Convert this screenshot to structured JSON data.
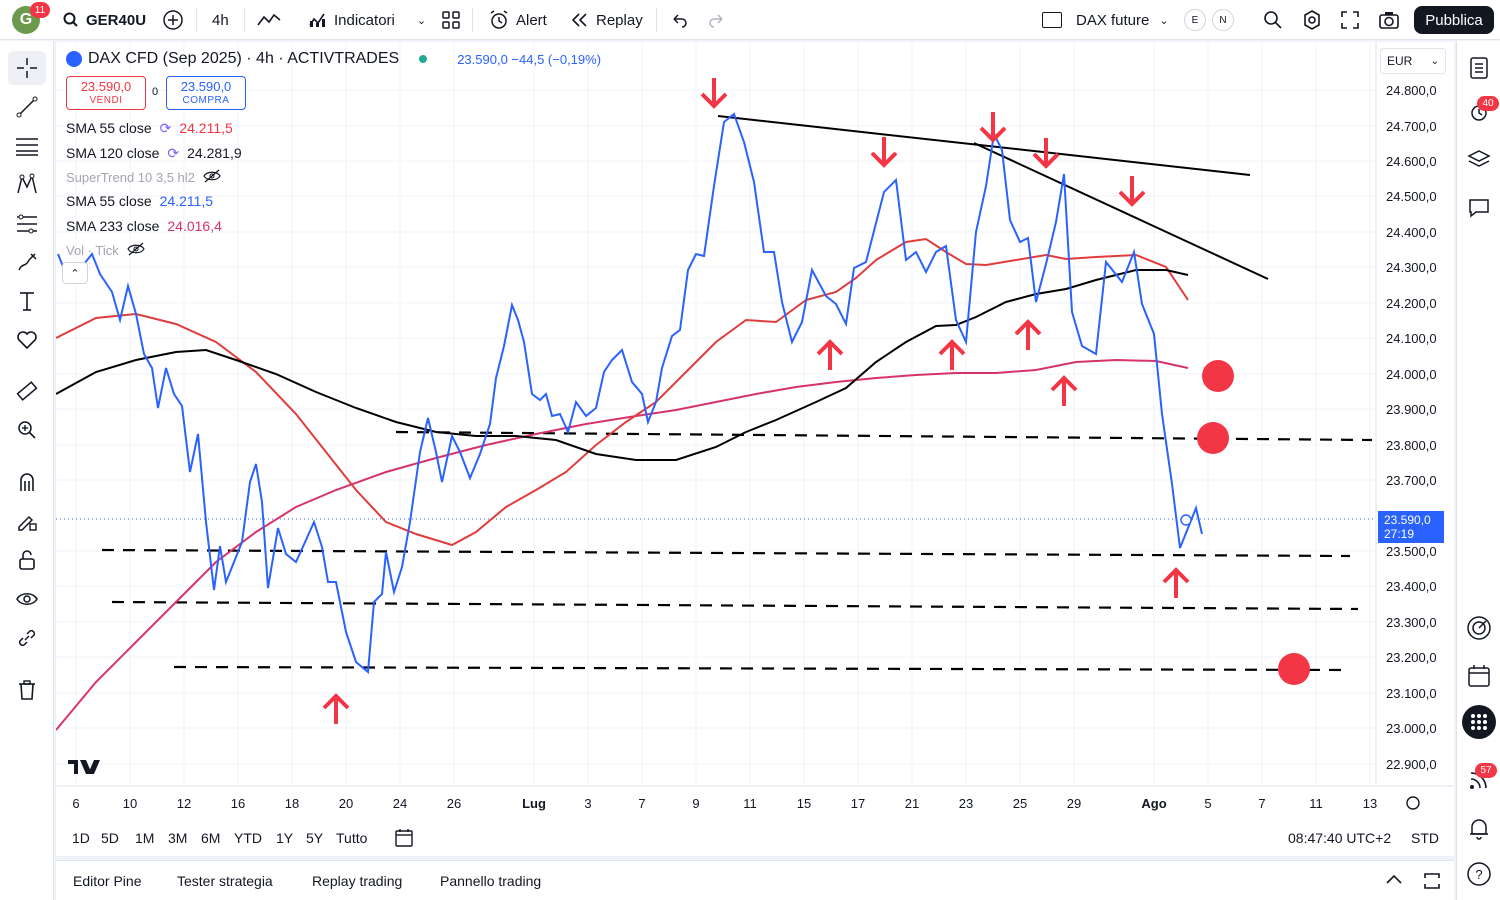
{
  "topbar": {
    "avatar_letter": "G",
    "avatar_badge": "11",
    "symbol": "GER40U",
    "interval": "4h",
    "indicators_label": "Indicatori",
    "alert_label": "Alert",
    "replay_label": "Replay",
    "layout_name": "DAX future",
    "e_label": "E",
    "n_label": "N",
    "publish_label": "Pubblica"
  },
  "legend": {
    "title": "DAX CFD (Sep 2025) · 4h · ACTIVTRADES",
    "last_line": "23.590,0  −44,5 (−0,19%)",
    "sell_price": "23.590,0",
    "sell_label": "VENDI",
    "spread": "0",
    "buy_price": "23.590,0",
    "buy_label": "COMPRA",
    "indicators": [
      {
        "name": "SMA 55 close",
        "value": "24.211,5",
        "color": "#f23645"
      },
      {
        "name": "SMA 120 close",
        "value": "24.281,9",
        "color": "#131722"
      },
      {
        "name": "SuperTrend 10 3,5 hl2",
        "value": "",
        "color": "#a3a6af"
      },
      {
        "name": "SMA 55 close",
        "value": "24.211,5",
        "color": "#2962ff"
      },
      {
        "name": "SMA 233 close",
        "value": "24.016,4",
        "color": "#d6336c"
      },
      {
        "name": "Vol · Tick",
        "value": "",
        "color": "#a3a6af"
      }
    ]
  },
  "price_axis": {
    "currency": "EUR",
    "labels": [
      "24.800,0",
      "24.700,0",
      "24.600,0",
      "24.500,0",
      "24.400,0",
      "24.300,0",
      "24.200,0",
      "24.100,0",
      "24.000,0",
      "23.900,0",
      "23.800,0",
      "23.700,0",
      "23.500,0",
      "23.400,0",
      "23.300,0",
      "23.200,0",
      "23.100,0",
      "23.000,0",
      "22.900,0"
    ],
    "current_price": "23.590,0",
    "countdown": "27:19"
  },
  "time_axis": {
    "labels": [
      "6",
      "10",
      "12",
      "16",
      "18",
      "20",
      "24",
      "26",
      "Lug",
      "3",
      "7",
      "9",
      "11",
      "15",
      "17",
      "21",
      "23",
      "25",
      "29",
      "Ago",
      "5",
      "7",
      "11",
      "13"
    ]
  },
  "range_bar": {
    "ranges": [
      "1D",
      "5D",
      "1M",
      "3M",
      "6M",
      "YTD",
      "1Y",
      "5Y",
      "Tutto"
    ],
    "clock": "08:47:40 UTC+2",
    "session": "STD"
  },
  "bottom_tabs": [
    "Editor Pine",
    "Tester strategia",
    "Replay trading",
    "Pannello trading"
  ],
  "right_badges": {
    "alerts": "40",
    "notifications": "57"
  },
  "colors": {
    "price_line": "#2962ff",
    "sma55": "#e03c3c",
    "sma120": "#000000",
    "sma233": "#d6336c",
    "annotation": "#f23645"
  },
  "icons": [
    "search-icon",
    "plus-icon",
    "indicators-icon",
    "templates-icon",
    "alarm-icon",
    "replay-icon",
    "undo-icon",
    "redo-icon",
    "camera-icon",
    "fullscreen-icon",
    "settings-icon",
    "crosshair-icon",
    "trendline-icon",
    "fib-icon",
    "pattern-icon",
    "brush-icon",
    "text-icon",
    "heart-icon",
    "ruler-icon",
    "zoom-icon",
    "magnet-icon",
    "lock-icon",
    "eye-icon",
    "link-icon",
    "trash-icon"
  ]
}
